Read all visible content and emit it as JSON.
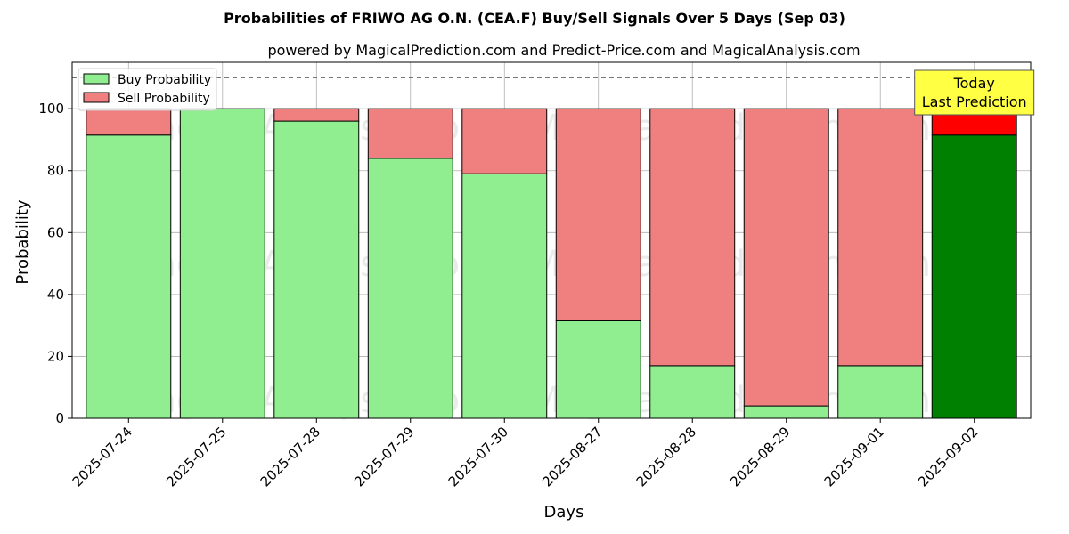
{
  "chart_data": {
    "type": "bar",
    "stacked": true,
    "title": "Probabilities of FRIWO AG O.N. (CEA.F) Buy/Sell Signals Over 5 Days (Sep 03)",
    "subtitle": "powered by MagicalPrediction.com and Predict-Price.com and MagicalAnalysis.com",
    "xlabel": "Days",
    "ylabel": "Probability",
    "ylim": [
      0,
      115
    ],
    "yticks": [
      0,
      20,
      40,
      60,
      80,
      100
    ],
    "reference_line": 110,
    "grid": true,
    "legend_placement": "top-left",
    "categories": [
      "2025-07-24",
      "2025-07-25",
      "2025-07-28",
      "2025-07-29",
      "2025-07-30",
      "2025-08-27",
      "2025-08-28",
      "2025-08-29",
      "2025-09-01",
      "2025-09-02"
    ],
    "series": [
      {
        "name": "Buy Probability",
        "color": "#90ee90",
        "values": [
          91.5,
          100,
          96,
          84,
          79,
          31.5,
          17,
          4,
          17,
          91.5
        ]
      },
      {
        "name": "Sell Probability",
        "color": "#f08080",
        "values": [
          8.5,
          0,
          4,
          16,
          21,
          68.5,
          83,
          96,
          83,
          8.5
        ]
      }
    ],
    "highlight": {
      "index": 9,
      "buy_color": "#008000",
      "sell_color": "#ff0000",
      "annotation": [
        "Today",
        "Last Prediction"
      ],
      "annotation_color": "#ffff44"
    },
    "watermarks": [
      "MagicalAnalysis.com",
      "MagicalPrediction.com"
    ]
  }
}
